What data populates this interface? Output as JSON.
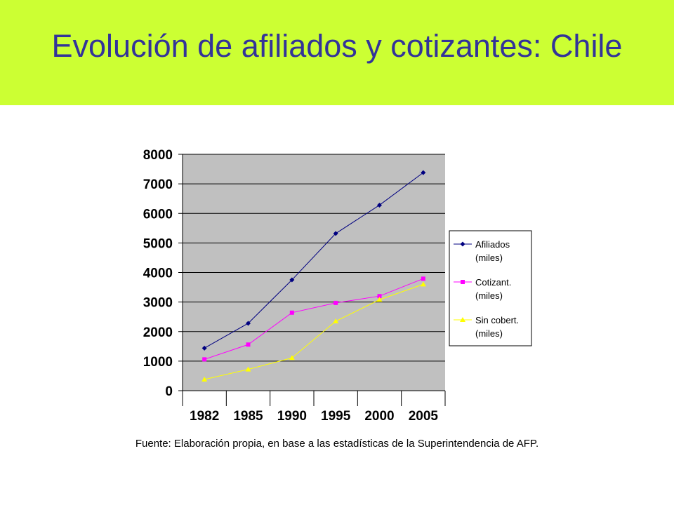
{
  "slide": {
    "title": "Evolución de afiliados y cotizantes: Chile",
    "source": "Fuente: Elaboración propia, en base a las estadísticas de la Superintendencia de AFP.",
    "band_color": "#ccff33",
    "title_color": "#333399"
  },
  "chart_data": {
    "type": "line",
    "categories": [
      "1982",
      "1985",
      "1990",
      "1995",
      "2000",
      "2005"
    ],
    "ylim": [
      0,
      8000
    ],
    "yticks": [
      0,
      1000,
      2000,
      3000,
      4000,
      5000,
      6000,
      7000,
      8000
    ],
    "grid": true,
    "legend_position": "right",
    "plot_background": "#c0c0c0",
    "series": [
      {
        "name": "Afiliados (miles)",
        "legend_lines": [
          "Afiliados",
          "(miles)"
        ],
        "color": "#000080",
        "marker": "diamond",
        "values": [
          1440,
          2280,
          3750,
          5320,
          6280,
          7380
        ]
      },
      {
        "name": "Cotizant. (miles)",
        "legend_lines": [
          "Cotizant.",
          "(miles)"
        ],
        "color": "#ff00ff",
        "marker": "square",
        "values": [
          1060,
          1560,
          2640,
          2970,
          3200,
          3790
        ]
      },
      {
        "name": "Sin cobert. (miles)",
        "legend_lines": [
          "Sin cobert.",
          "(miles)"
        ],
        "color": "#ffff00",
        "marker": "triangle",
        "values": [
          380,
          720,
          1110,
          2350,
          3080,
          3600
        ]
      }
    ]
  }
}
